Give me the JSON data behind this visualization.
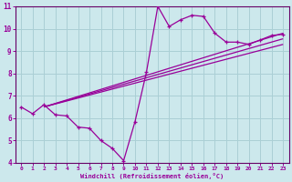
{
  "xlabel": "Windchill (Refroidissement éolien,°C)",
  "bg_color": "#cce8ec",
  "grid_color": "#aacfd5",
  "line_color": "#990099",
  "spine_color": "#660066",
  "xlim": [
    -0.5,
    23.5
  ],
  "ylim": [
    4,
    11
  ],
  "xticks": [
    0,
    1,
    2,
    3,
    4,
    5,
    6,
    7,
    8,
    9,
    10,
    11,
    12,
    13,
    14,
    15,
    16,
    17,
    18,
    19,
    20,
    21,
    22,
    23
  ],
  "yticks": [
    4,
    5,
    6,
    7,
    8,
    9,
    10,
    11
  ],
  "main_line": {
    "x": [
      0,
      1,
      2,
      3,
      4,
      5,
      6,
      7,
      8,
      9,
      10,
      11,
      12,
      13,
      14,
      15,
      16,
      17,
      18,
      19,
      20,
      21,
      22,
      23
    ],
    "y": [
      6.5,
      6.2,
      6.6,
      6.15,
      6.1,
      5.6,
      5.55,
      5.0,
      4.65,
      4.1,
      5.85,
      8.05,
      11.0,
      10.1,
      10.4,
      10.6,
      10.55,
      9.8,
      9.4,
      9.4,
      9.3,
      9.5,
      9.7,
      9.75
    ]
  },
  "straight_lines": [
    {
      "x": [
        2,
        23
      ],
      "y": [
        6.5,
        9.8
      ]
    },
    {
      "x": [
        2,
        23
      ],
      "y": [
        6.5,
        9.55
      ]
    },
    {
      "x": [
        2,
        23
      ],
      "y": [
        6.5,
        9.3
      ]
    }
  ]
}
